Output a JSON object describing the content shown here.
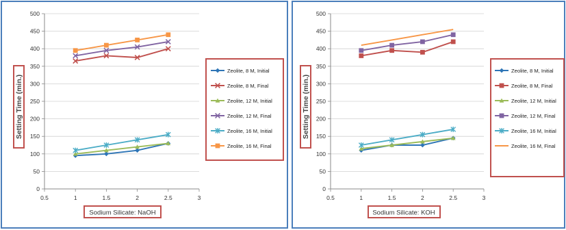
{
  "chart_data": [
    {
      "type": "line",
      "ylabel": "Setting Time (min.)",
      "xlabel": "Sodium Silicate: NaOH",
      "xlim": [
        0.5,
        3
      ],
      "ylim": [
        0,
        500
      ],
      "xticks": [
        "0.5",
        "1",
        "1.5",
        "2",
        "2.5",
        "3"
      ],
      "yticks": [
        "0",
        "50",
        "100",
        "150",
        "200",
        "250",
        "300",
        "350",
        "400",
        "450",
        "500"
      ],
      "x": [
        1,
        1.5,
        2,
        2.5
      ],
      "legend_position": "right",
      "series": [
        {
          "name": "Zeolite, 8 M, Initial",
          "values": [
            95,
            100,
            110,
            130
          ],
          "color": "#2e75b6",
          "marker": "diamond"
        },
        {
          "name": "Zeolite, 8 M, Final",
          "values": [
            365,
            380,
            375,
            400
          ],
          "color": "#c0504d",
          "marker": "x"
        },
        {
          "name": "Zeolite, 12 M, Initial",
          "values": [
            100,
            110,
            120,
            130
          ],
          "color": "#9bbb59",
          "marker": "triangle"
        },
        {
          "name": "Zeolite, 12 M, Final",
          "values": [
            380,
            395,
            405,
            420
          ],
          "color": "#8064a2",
          "marker": "x"
        },
        {
          "name": "Zeolite, 16 M, Initial",
          "values": [
            110,
            125,
            140,
            155
          ],
          "color": "#4bacc6",
          "marker": "star"
        },
        {
          "name": "Zeolite, 16 M, Final",
          "values": [
            395,
            410,
            425,
            440
          ],
          "color": "#f79646",
          "marker": "square"
        }
      ]
    },
    {
      "type": "line",
      "ylabel": "Setting Time (min.)",
      "xlabel": "Sodium Silicate: KOH",
      "xlim": [
        0.5,
        3
      ],
      "ylim": [
        0,
        500
      ],
      "xticks": [
        "0.5",
        "1",
        "1.5",
        "2",
        "2.5",
        "3"
      ],
      "yticks": [
        "0",
        "50",
        "100",
        "150",
        "200",
        "250",
        "300",
        "350",
        "400",
        "450",
        "500"
      ],
      "x": [
        1,
        1.5,
        2,
        2.5
      ],
      "legend_position": "right",
      "series": [
        {
          "name": "Zeolite, 8 M, Initial",
          "values": [
            110,
            125,
            125,
            145
          ],
          "color": "#2e75b6",
          "marker": "diamond"
        },
        {
          "name": "Zeolite, 8 M, Final",
          "values": [
            380,
            395,
            390,
            420
          ],
          "color": "#c0504d",
          "marker": "square"
        },
        {
          "name": "Zeolite, 12 M, Initial",
          "values": [
            115,
            125,
            135,
            145
          ],
          "color": "#9bbb59",
          "marker": "triangle"
        },
        {
          "name": "Zeolite, 12 M, Final",
          "values": [
            395,
            410,
            420,
            440
          ],
          "color": "#8064a2",
          "marker": "square"
        },
        {
          "name": "Zeolite, 16 M, Initial",
          "values": [
            125,
            140,
            155,
            170
          ],
          "color": "#4bacc6",
          "marker": "star"
        },
        {
          "name": "Zeolite, 16 M, Final",
          "values": [
            410,
            425,
            440,
            455
          ],
          "color": "#f79646",
          "marker": "none"
        }
      ]
    }
  ]
}
